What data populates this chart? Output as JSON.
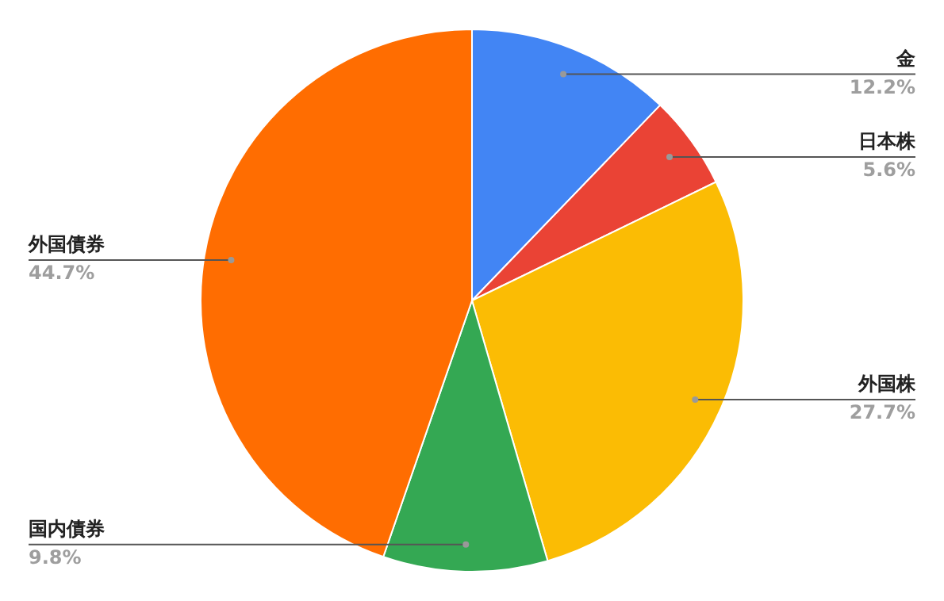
{
  "chart_data": {
    "type": "pie",
    "categories": [
      "金",
      "日本株",
      "外国株",
      "国内債券",
      "外国債券"
    ],
    "values": [
      12.2,
      5.6,
      27.7,
      9.8,
      44.7
    ],
    "value_labels": [
      "12.2%",
      "5.6%",
      "27.7%",
      "9.8%",
      "44.7%"
    ],
    "colors": [
      "#4285f4",
      "#ea4335",
      "#fbbc04",
      "#34a853",
      "#ff6d01"
    ],
    "legend": false
  }
}
